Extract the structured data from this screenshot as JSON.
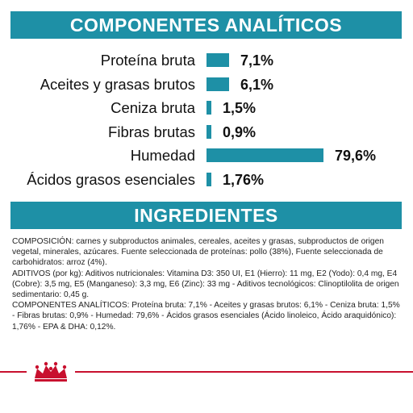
{
  "analytics": {
    "title": "COMPONENTES ANALÍTICOS",
    "accent_color": "#1e90a6",
    "rows": [
      {
        "label": "Proteína bruta",
        "value": "7,1%",
        "percent": 7.1
      },
      {
        "label": "Aceites y grasas brutos",
        "value": "6,1%",
        "percent": 6.1
      },
      {
        "label": "Ceniza bruta",
        "value": "1,5%",
        "percent": 1.5
      },
      {
        "label": "Fibras brutas",
        "value": "0,9%",
        "percent": 0.9
      },
      {
        "label": "Humedad",
        "value": "79,6%",
        "percent": 79.6
      },
      {
        "label": "Ácidos grasos esenciales",
        "value": "1,76%",
        "percent": 1.76
      }
    ]
  },
  "ingredients": {
    "title": "INGREDIENTES",
    "composition": "COMPOSICIÓN: carnes y subproductos animales, cereales, aceites y grasas, subproductos de origen vegetal, minerales, azúcares. Fuente seleccionada de proteínas: pollo (38%), Fuente seleccionada de carbohidratos: arroz (4%).",
    "additives": "ADITIVOS (por kg): Aditivos nutricionales: Vitamina D3: 350 UI, E1 (Hierro): 11 mg, E2 (Yodo): 0,4 mg, E4 (Cobre): 3,5 mg, E5 (Manganeso): 3,3 mg, E6 (Zinc): 33 mg - Aditivos tecnológicos: Clinoptilolita de origen sedimentario: 0,45 g.",
    "components": "COMPONENTES ANALÍTICOS: Proteína bruta: 7,1% - Aceites y grasas brutos: 6,1% - Ceniza bruta: 1,5% - Fibras brutas: 0,9% - Humedad: 79,6% - Ácidos grasos esenciales (Ácido linoleico, Ácido araquidónico): 1,76% - EPA & DHA: 0,12%."
  },
  "footer": {
    "line_color": "#c8102e",
    "logo_icon": "royal-crown-logo-icon"
  }
}
